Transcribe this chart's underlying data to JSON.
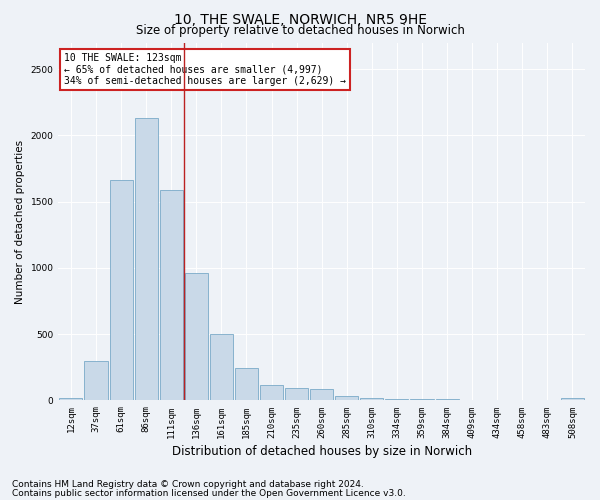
{
  "title": "10, THE SWALE, NORWICH, NR5 9HE",
  "subtitle": "Size of property relative to detached houses in Norwich",
  "xlabel": "Distribution of detached houses by size in Norwich",
  "ylabel": "Number of detached properties",
  "bar_labels": [
    "12sqm",
    "37sqm",
    "61sqm",
    "86sqm",
    "111sqm",
    "136sqm",
    "161sqm",
    "185sqm",
    "210sqm",
    "235sqm",
    "260sqm",
    "285sqm",
    "310sqm",
    "334sqm",
    "359sqm",
    "384sqm",
    "409sqm",
    "434sqm",
    "458sqm",
    "483sqm",
    "508sqm"
  ],
  "bar_values": [
    15,
    295,
    1660,
    2130,
    1590,
    960,
    500,
    245,
    120,
    95,
    90,
    35,
    15,
    10,
    10,
    10,
    5,
    5,
    5,
    5,
    20
  ],
  "bar_color": "#c9d9e8",
  "bar_edge_color": "#7aaac8",
  "vline_x": 4.5,
  "vline_color": "#bb2222",
  "ylim": [
    0,
    2700
  ],
  "annotation_line1": "10 THE SWALE: 123sqm",
  "annotation_line2": "← 65% of detached houses are smaller (4,997)",
  "annotation_line3": "34% of semi-detached houses are larger (2,629) →",
  "annotation_box_facecolor": "#ffffff",
  "annotation_box_edgecolor": "#cc2222",
  "footer1": "Contains HM Land Registry data © Crown copyright and database right 2024.",
  "footer2": "Contains public sector information licensed under the Open Government Licence v3.0.",
  "background_color": "#eef2f7",
  "grid_color": "#ffffff",
  "title_fontsize": 10,
  "subtitle_fontsize": 8.5,
  "xlabel_fontsize": 8.5,
  "ylabel_fontsize": 7.5,
  "tick_fontsize": 6.5,
  "footer_fontsize": 6.5,
  "ann_fontsize": 7
}
